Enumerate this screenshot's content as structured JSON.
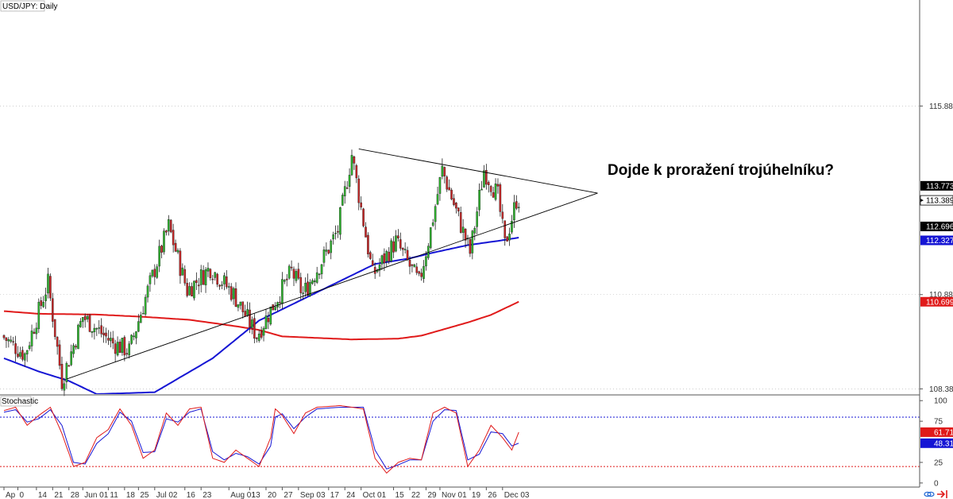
{
  "chart_data": {
    "type": "candlestick",
    "title": "USD/JPY: Daily",
    "annotation": "Dojde k proražení trojúhelníku?",
    "price_axis": {
      "ticks": [
        "115.889",
        "110.889",
        "108.389"
      ],
      "tick_values": [
        115.889,
        110.889,
        108.389
      ],
      "ylim": [
        108.25,
        118.7
      ]
    },
    "x_axis": {
      "ticks": [
        "Ap",
        "0",
        "14",
        "21",
        "28",
        "Jun 01",
        "11",
        "18",
        "25",
        "Jul 02",
        "16",
        "23",
        "Aug 01",
        "13",
        "20",
        "27",
        "Sep 03",
        "17",
        "24",
        "Oct 01",
        "15",
        "22",
        "29",
        "Nov 01",
        "19",
        "26",
        "Dec 03"
      ],
      "tick_index": [
        0,
        6,
        14,
        21,
        28,
        34,
        45,
        52,
        58,
        65,
        78,
        85,
        97,
        106,
        113,
        120,
        127,
        140,
        147,
        154,
        168,
        175,
        182,
        188,
        201,
        208,
        215
      ]
    },
    "price_tags": [
      {
        "label": "113.773",
        "value": 113.773,
        "color": "#000000"
      },
      {
        "label": "113.389",
        "value": 113.389,
        "color": "#000000",
        "current": true
      },
      {
        "label": "112.696",
        "value": 112.696,
        "color": "#000000"
      },
      {
        "label": "112.327",
        "value": 112.327,
        "color": "#1515d4"
      },
      {
        "label": "110.699",
        "value": 110.699,
        "color": "#e01a1a"
      }
    ],
    "moving_averages": [
      {
        "color": "#e01a1a",
        "points": [
          [
            0,
            110.45
          ],
          [
            15,
            110.38
          ],
          [
            40,
            110.36
          ],
          [
            60,
            110.3
          ],
          [
            80,
            110.22
          ],
          [
            100,
            110.05
          ],
          [
            110,
            109.95
          ],
          [
            120,
            109.78
          ],
          [
            150,
            109.7
          ],
          [
            170,
            109.72
          ],
          [
            180,
            109.8
          ],
          [
            200,
            110.15
          ],
          [
            210,
            110.35
          ],
          [
            222,
            110.7
          ]
        ]
      },
      {
        "color": "#1515d4",
        "points": [
          [
            0,
            109.2
          ],
          [
            15,
            108.85
          ],
          [
            28,
            108.6
          ],
          [
            40,
            108.25
          ],
          [
            65,
            108.3
          ],
          [
            90,
            109.2
          ],
          [
            110,
            110.2
          ],
          [
            130,
            110.8
          ],
          [
            150,
            111.4
          ],
          [
            160,
            111.7
          ],
          [
            175,
            111.85
          ],
          [
            185,
            112.0
          ],
          [
            200,
            112.2
          ],
          [
            215,
            112.33
          ],
          [
            222,
            112.4
          ]
        ]
      }
    ],
    "trendlines": [
      {
        "from": [
          27,
          108.65
        ],
        "to": [
          256,
          113.58
        ],
        "color": "#000000"
      },
      {
        "from": [
          153,
          114.75
        ],
        "to": [
          256,
          113.58
        ],
        "color": "#000000"
      }
    ],
    "anchors": [
      [
        0,
        109.8
      ],
      [
        10,
        109.3
      ],
      [
        20,
        111.2
      ],
      [
        26,
        108.6
      ],
      [
        35,
        110.3
      ],
      [
        48,
        109.6
      ],
      [
        55,
        109.4
      ],
      [
        62,
        110.8
      ],
      [
        72,
        112.7
      ],
      [
        80,
        111.0
      ],
      [
        90,
        111.6
      ],
      [
        100,
        110.9
      ],
      [
        110,
        109.8
      ],
      [
        125,
        111.5
      ],
      [
        130,
        110.9
      ],
      [
        140,
        112.0
      ],
      [
        145,
        112.6
      ],
      [
        151,
        114.6
      ],
      [
        160,
        111.4
      ],
      [
        170,
        112.3
      ],
      [
        180,
        111.2
      ],
      [
        185,
        112.6
      ],
      [
        190,
        114.2
      ],
      [
        196,
        113.1
      ],
      [
        202,
        112.0
      ],
      [
        208,
        114.2
      ],
      [
        214,
        113.5
      ],
      [
        217,
        112.2
      ],
      [
        222,
        113.4
      ]
    ],
    "candle_count": 223,
    "stochastic": {
      "title": "Stochastic",
      "ticks": [
        "100",
        "75",
        "25",
        "0"
      ],
      "tick_values": [
        100,
        75,
        25,
        0
      ],
      "upper_level": 80,
      "lower_level": 20,
      "values": [
        {
          "label": "61.71",
          "value": 61.71,
          "color": "#e01a1a"
        },
        {
          "label": "48.31",
          "value": 48.31,
          "color": "#1515d4"
        }
      ],
      "k_anchors": [
        [
          0,
          88
        ],
        [
          5,
          92
        ],
        [
          10,
          70
        ],
        [
          15,
          82
        ],
        [
          20,
          92
        ],
        [
          25,
          60
        ],
        [
          30,
          20
        ],
        [
          35,
          25
        ],
        [
          40,
          55
        ],
        [
          45,
          65
        ],
        [
          50,
          90
        ],
        [
          55,
          70
        ],
        [
          60,
          30
        ],
        [
          65,
          40
        ],
        [
          70,
          85
        ],
        [
          75,
          70
        ],
        [
          80,
          90
        ],
        [
          85,
          92
        ],
        [
          90,
          30
        ],
        [
          95,
          25
        ],
        [
          100,
          40
        ],
        [
          105,
          30
        ],
        [
          110,
          20
        ],
        [
          115,
          55
        ],
        [
          117,
          90
        ],
        [
          120,
          82
        ],
        [
          125,
          60
        ],
        [
          130,
          85
        ],
        [
          135,
          92
        ],
        [
          145,
          94
        ],
        [
          155,
          90
        ],
        [
          160,
          30
        ],
        [
          165,
          12
        ],
        [
          170,
          25
        ],
        [
          175,
          30
        ],
        [
          180,
          28
        ],
        [
          185,
          85
        ],
        [
          190,
          92
        ],
        [
          195,
          85
        ],
        [
          200,
          20
        ],
        [
          205,
          40
        ],
        [
          210,
          70
        ],
        [
          215,
          55
        ],
        [
          219,
          40
        ],
        [
          222,
          61.71
        ]
      ],
      "d_anchors": [
        [
          0,
          86
        ],
        [
          5,
          89
        ],
        [
          10,
          74
        ],
        [
          15,
          78
        ],
        [
          20,
          89
        ],
        [
          25,
          70
        ],
        [
          30,
          25
        ],
        [
          35,
          23
        ],
        [
          40,
          48
        ],
        [
          45,
          60
        ],
        [
          50,
          86
        ],
        [
          55,
          75
        ],
        [
          60,
          37
        ],
        [
          65,
          38
        ],
        [
          70,
          78
        ],
        [
          75,
          74
        ],
        [
          80,
          86
        ],
        [
          85,
          90
        ],
        [
          90,
          38
        ],
        [
          95,
          28
        ],
        [
          100,
          36
        ],
        [
          105,
          32
        ],
        [
          110,
          23
        ],
        [
          115,
          45
        ],
        [
          117,
          80
        ],
        [
          120,
          84
        ],
        [
          125,
          66
        ],
        [
          130,
          80
        ],
        [
          135,
          90
        ],
        [
          145,
          92
        ],
        [
          155,
          92
        ],
        [
          160,
          40
        ],
        [
          165,
          17
        ],
        [
          170,
          22
        ],
        [
          175,
          28
        ],
        [
          180,
          28
        ],
        [
          185,
          75
        ],
        [
          190,
          89
        ],
        [
          195,
          88
        ],
        [
          200,
          28
        ],
        [
          205,
          35
        ],
        [
          210,
          62
        ],
        [
          215,
          60
        ],
        [
          219,
          45
        ],
        [
          222,
          48.31
        ]
      ]
    },
    "colors": {
      "up": "#2db52d",
      "down": "#c92626",
      "wick": "#222222",
      "ma200": "#e01a1a",
      "ma100": "#1515d4",
      "grid_dot": "#b0b0b0"
    },
    "icons": [
      "sync-icon",
      "forward-arrow-icon"
    ]
  }
}
